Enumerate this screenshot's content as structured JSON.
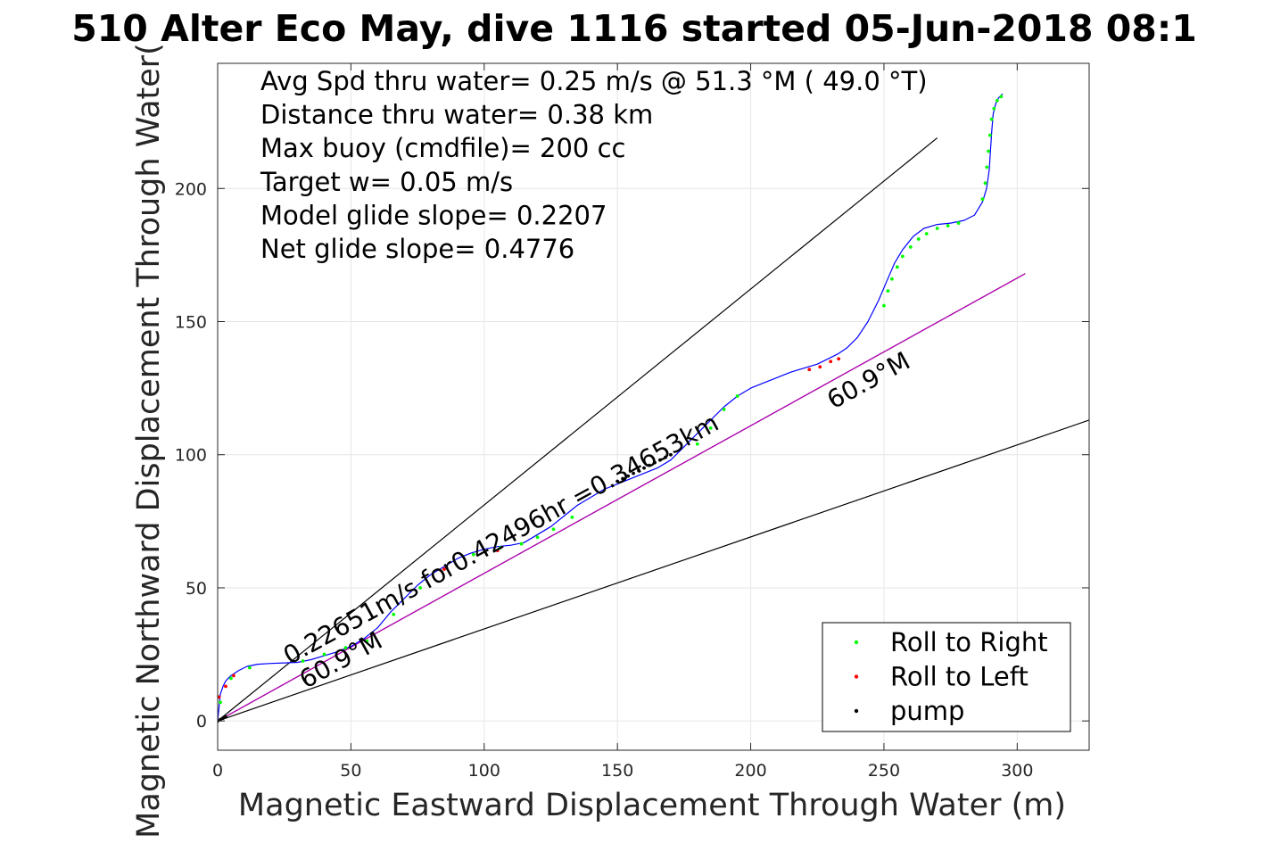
{
  "chart_data": {
    "type": "line",
    "title": "510 Alter Eco May, dive 1116 started 05-Jun-2018 08:1",
    "xlabel": "Magnetic Eastward Displacement Through Water (m)",
    "ylabel": "Magnetic Northward Displacement Through Water(",
    "xlim": [
      0,
      327
    ],
    "ylim": [
      -11,
      247
    ],
    "xticks": [
      0,
      50,
      100,
      150,
      200,
      250,
      300
    ],
    "yticks": [
      0,
      50,
      100,
      150,
      200
    ],
    "grid": true,
    "legend_position": "bottom-right",
    "annotations": [
      "Avg Spd thru water=  0.25 m/s @  51.3 °M ( 49.0 °T)",
      "Distance thru water=  0.38 km",
      "Max buoy (cmdfile)= 200 cc",
      "Target w= 0.05 m/s",
      "Model glide slope= 0.2207",
      "Net glide slope= 0.4776"
    ],
    "rotated_labels": [
      {
        "text": "0.22651m/s for0.42496hr =0.34653km",
        "x": 27,
        "y": 21,
        "angle_deg": 28.8
      },
      {
        "text": "60.9°M",
        "x": 33,
        "y": 12,
        "angle_deg": 28.8
      },
      {
        "text": "60.9°M",
        "x": 231,
        "y": 117,
        "angle_deg": 28.8
      }
    ],
    "reference_lines": [
      {
        "name": "cone-upper",
        "x": [
          0,
          270
        ],
        "y": [
          0,
          219
        ],
        "color": "#000000"
      },
      {
        "name": "cone-lower",
        "x": [
          0,
          327
        ],
        "y": [
          0,
          113
        ],
        "color": "#000000"
      },
      {
        "name": "net-heading",
        "x": [
          0,
          303
        ],
        "y": [
          0,
          168
        ],
        "color": "#000000"
      },
      {
        "name": "track-heading",
        "x": [
          0,
          303
        ],
        "y": [
          0,
          168
        ],
        "color": "#bf00bf"
      }
    ],
    "track": {
      "color": "#0000ff",
      "x": [
        0,
        0.5,
        1,
        2,
        3,
        5,
        8,
        11,
        15,
        20,
        25,
        30,
        35,
        40,
        45,
        50,
        55,
        60,
        65,
        70,
        75,
        80,
        85,
        90,
        95,
        100,
        105,
        110,
        115,
        120,
        125,
        130,
        135,
        140,
        145,
        150,
        155,
        160,
        165,
        170,
        175,
        180,
        185,
        190,
        195,
        200,
        205,
        210,
        215,
        220,
        225,
        230,
        233,
        236,
        240,
        244,
        248,
        251,
        254,
        257,
        261,
        265,
        270,
        275,
        280,
        284,
        287,
        288.5,
        289.5,
        290,
        290.5,
        291,
        292,
        293,
        294.5
      ],
      "y": [
        0,
        5,
        10,
        13,
        15,
        17,
        19,
        20.5,
        21.3,
        21.6,
        21.8,
        22,
        23,
        24.5,
        26,
        28,
        31,
        35,
        41,
        46,
        51,
        55,
        58,
        61,
        63,
        64.5,
        65.5,
        66,
        67,
        70,
        73,
        77,
        81,
        84,
        87,
        89,
        91,
        93,
        95,
        98,
        103,
        108,
        113,
        118,
        122,
        125,
        127,
        129,
        131,
        132.5,
        134,
        136.5,
        138,
        140,
        144,
        150,
        158,
        165,
        172,
        177,
        182,
        185,
        186.5,
        187,
        188,
        190,
        195,
        200,
        207,
        215,
        222,
        228,
        232,
        234,
        235.5
      ]
    },
    "series": [
      {
        "name": "Roll to Right",
        "color": "#00ff00",
        "x": [
          1,
          5,
          12,
          32,
          40,
          48,
          56,
          66,
          76,
          96,
          106,
          114,
          120,
          126,
          133,
          180,
          185,
          190,
          195,
          250,
          251.5,
          253,
          255,
          257,
          260,
          263,
          266,
          270,
          274,
          278,
          287,
          288,
          288.6,
          289.2,
          289.8,
          290.4,
          291.3,
          292.5,
          294
        ],
        "y": [
          7,
          16,
          20,
          22.5,
          25,
          27.5,
          30,
          40,
          50,
          62.5,
          65,
          66.5,
          69,
          72,
          76.5,
          104,
          110,
          117,
          122,
          156,
          161.5,
          166,
          170.5,
          174.5,
          178,
          181,
          183,
          185,
          186,
          187,
          196,
          202,
          208,
          214,
          220,
          226,
          230,
          233,
          234.5
        ]
      },
      {
        "name": "Roll to Left",
        "color": "#ff0000",
        "x": [
          0,
          0.5,
          3,
          6,
          85,
          105,
          222,
          226,
          230,
          233
        ],
        "y": [
          0,
          9,
          13,
          17,
          57,
          64,
          132,
          133,
          135,
          136
        ]
      },
      {
        "name": "pump",
        "color": "#000000",
        "x": [
          0,
          1,
          2,
          3,
          150,
          152,
          154,
          156,
          158,
          160,
          162,
          164,
          166,
          168,
          170
        ],
        "y": [
          0,
          0.5,
          1,
          1.5,
          90,
          91,
          92,
          93,
          94,
          95,
          96,
          97,
          98,
          99,
          100
        ]
      }
    ]
  }
}
